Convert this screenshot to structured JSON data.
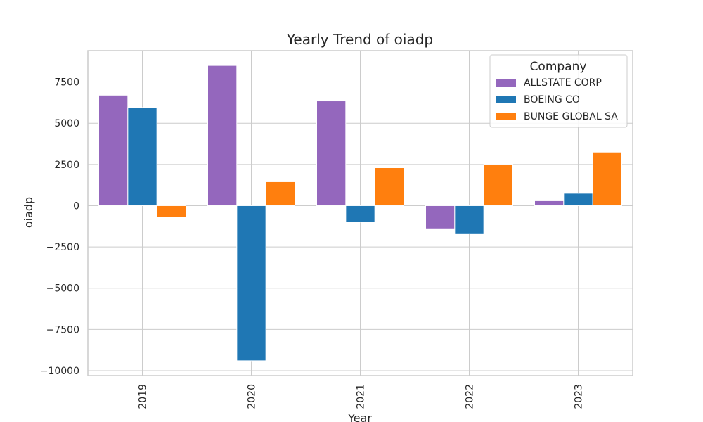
{
  "chart_data": {
    "type": "bar",
    "title": "Yearly Trend of oiadp",
    "xlabel": "Year",
    "ylabel": "oiadp",
    "categories": [
      "2019",
      "2020",
      "2021",
      "2022",
      "2023"
    ],
    "series": [
      {
        "name": "ALLSTATE CORP",
        "color": "#9467bd",
        "values": [
          6700,
          8500,
          6350,
          -1400,
          300
        ]
      },
      {
        "name": "BOEING CO",
        "color": "#1f77b4",
        "values": [
          5950,
          -9400,
          -1000,
          -1700,
          750
        ]
      },
      {
        "name": "BUNGE GLOBAL SA",
        "color": "#ff7f0e",
        "values": [
          -700,
          1450,
          2300,
          2500,
          3250
        ]
      }
    ],
    "ylim": [
      -10300,
      9400
    ],
    "yticks": [
      -10000,
      -7500,
      -5000,
      -2500,
      0,
      2500,
      5000,
      7500
    ],
    "ytick_labels": [
      "−10000",
      "−7500",
      "−5000",
      "−2500",
      "0",
      "2500",
      "5000",
      "7500"
    ],
    "legend": {
      "title": "Company",
      "placement": "upper right"
    },
    "grid": true
  }
}
